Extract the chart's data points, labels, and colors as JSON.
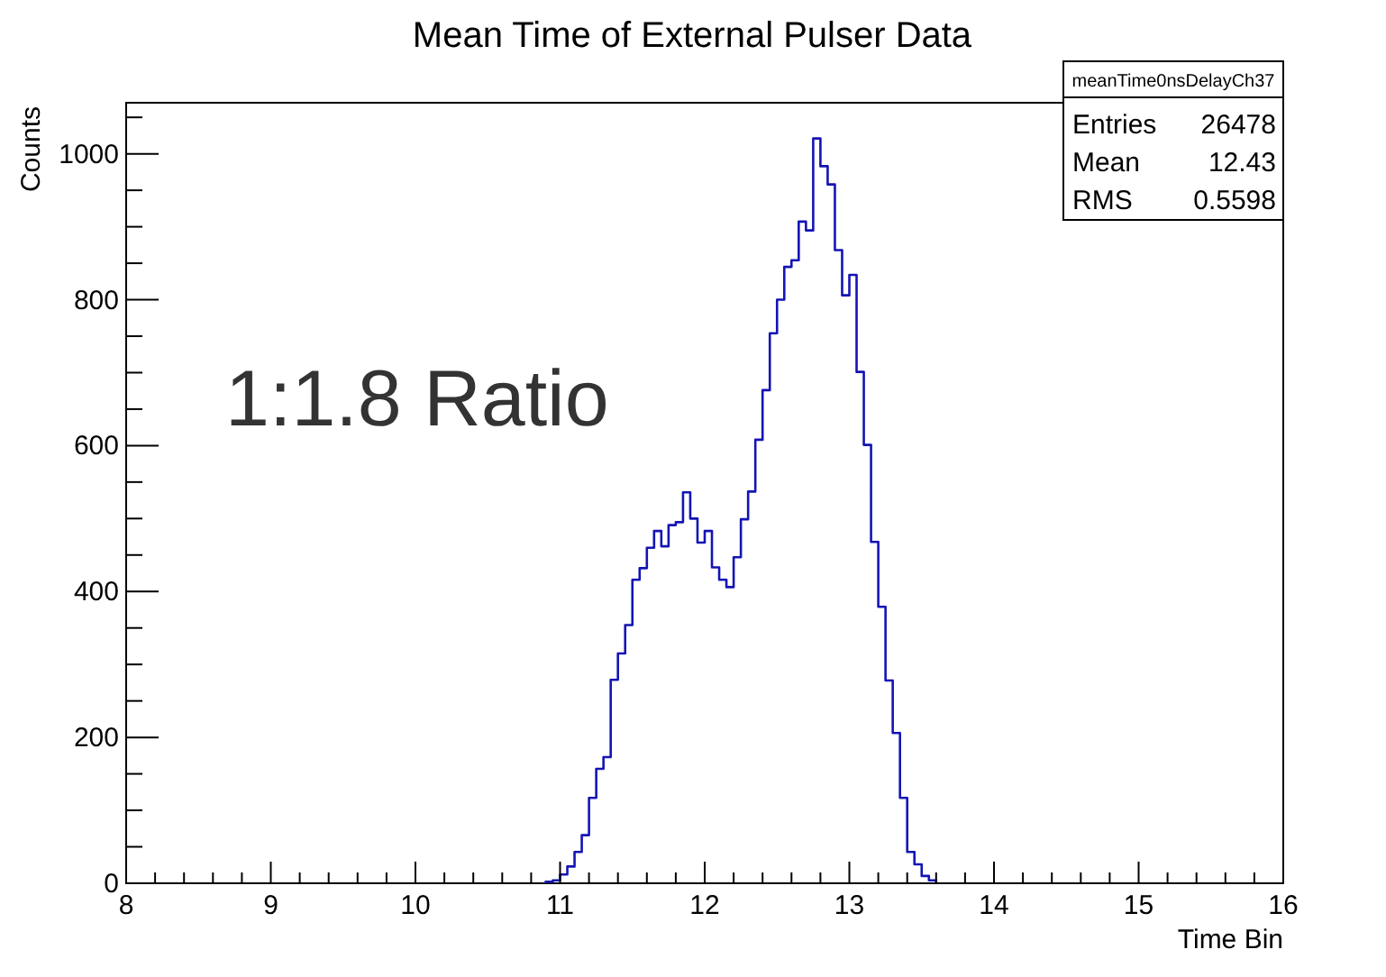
{
  "chart_data": {
    "type": "histogram",
    "title": "Mean Time of External Pulser Data",
    "xlabel": "Time Bin",
    "ylabel": "Counts",
    "bins": [
      10.9,
      10.95,
      11.0,
      11.05,
      11.1,
      11.15,
      11.2,
      11.25,
      11.3,
      11.35,
      11.4,
      11.45,
      11.5,
      11.55,
      11.6,
      11.65,
      11.7,
      11.75,
      11.8,
      11.85,
      11.9,
      11.95,
      12.0,
      12.05,
      12.1,
      12.15,
      12.2,
      12.25,
      12.3,
      12.35,
      12.4,
      12.45,
      12.5,
      12.55,
      12.6,
      12.65,
      12.7,
      12.75,
      12.8,
      12.85,
      12.9,
      12.95,
      13.0,
      13.05,
      13.1,
      13.15,
      13.2,
      13.25,
      13.3,
      13.35,
      13.4,
      13.45,
      13.5,
      13.55,
      13.6
    ],
    "values": [
      2,
      4,
      12,
      23,
      43,
      66,
      117,
      157,
      173,
      279,
      315,
      354,
      416,
      432,
      460,
      483,
      462,
      491,
      495,
      536,
      500,
      467,
      483,
      433,
      416,
      406,
      447,
      499,
      537,
      608,
      676,
      754,
      800,
      845,
      854,
      907,
      895,
      1021,
      983,
      958,
      868,
      806,
      834,
      701,
      601,
      468,
      379,
      278,
      206,
      117,
      43,
      26,
      10,
      4
    ],
    "color": "#1414b4",
    "xlim": [
      8,
      16
    ],
    "xticks": [
      8,
      {
        "value": 8.2,
        "label": null
      },
      {
        "value": 8.4,
        "label": null
      },
      {
        "value": 8.6,
        "label": null
      },
      {
        "value": 8.8,
        "label": null
      },
      9,
      {
        "value": 9.2,
        "label": null
      },
      {
        "value": 9.4,
        "label": null
      },
      {
        "value": 9.6,
        "label": null
      },
      {
        "value": 9.8,
        "label": null
      },
      10,
      {
        "value": 10.2,
        "label": null
      },
      {
        "value": 10.4,
        "label": null
      },
      {
        "value": 10.6,
        "label": null
      },
      {
        "value": 10.8,
        "label": null
      },
      11,
      {
        "value": 11.2,
        "label": null
      },
      {
        "value": 11.4,
        "label": null
      },
      {
        "value": 11.6,
        "label": null
      },
      {
        "value": 11.8,
        "label": null
      },
      12,
      {
        "value": 12.2,
        "label": null
      },
      {
        "value": 12.4,
        "label": null
      },
      {
        "value": 12.6,
        "label": null
      },
      {
        "value": 12.8,
        "label": null
      },
      13,
      {
        "value": 13.2,
        "label": null
      },
      {
        "value": 13.4,
        "label": null
      },
      {
        "value": 13.6,
        "label": null
      },
      {
        "value": 13.8,
        "label": null
      },
      14,
      {
        "value": 14.2,
        "label": null
      },
      {
        "value": 14.4,
        "label": null
      },
      {
        "value": 14.6,
        "label": null
      },
      {
        "value": 14.8,
        "label": null
      },
      15,
      {
        "value": 15.2,
        "label": null
      },
      {
        "value": 15.4,
        "label": null
      },
      {
        "value": 15.6,
        "label": null
      },
      {
        "value": 15.8,
        "label": null
      },
      16
    ],
    "ylim": [
      0,
      1070
    ],
    "yticks": [
      0,
      {
        "value": 50,
        "label": null
      },
      {
        "value": 100,
        "label": null
      },
      {
        "value": 150,
        "label": null
      },
      200,
      {
        "value": 250,
        "label": null
      },
      {
        "value": 300,
        "label": null
      },
      {
        "value": 350,
        "label": null
      },
      400,
      {
        "value": 450,
        "label": null
      },
      {
        "value": 500,
        "label": null
      },
      {
        "value": 550,
        "label": null
      },
      600,
      {
        "value": 650,
        "label": null
      },
      {
        "value": 700,
        "label": null
      },
      {
        "value": 750,
        "label": null
      },
      800,
      {
        "value": 850,
        "label": null
      },
      {
        "value": 900,
        "label": null
      },
      {
        "value": 950,
        "label": null
      },
      1000,
      {
        "value": 1050,
        "label": null
      }
    ],
    "grid": false,
    "annotations": [
      "1:1.8 Ratio",
      "meanTime0nsDelayCh37",
      "Entries",
      "26478",
      "Mean",
      "12.43",
      "RMS",
      "0.5598"
    ]
  }
}
